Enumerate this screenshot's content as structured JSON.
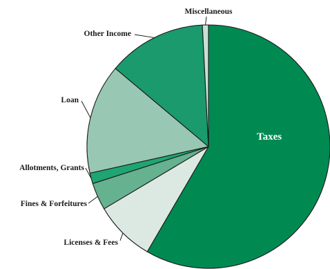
{
  "chart_data": {
    "type": "pie",
    "title": "",
    "slices": [
      {
        "label": "Taxes",
        "value": 58.0,
        "color": "#008a52",
        "label_inside": true
      },
      {
        "label": "Licenses & Fees",
        "value": 8.0,
        "color": "#dce9e2"
      },
      {
        "label": "Fines & Forfeitures",
        "value": 3.6,
        "color": "#66b18f"
      },
      {
        "label": "Allotments, Grants",
        "value": 1.4,
        "color": "#1ea572"
      },
      {
        "label": "Loan",
        "value": 14.5,
        "color": "#98c8b3"
      },
      {
        "label": "Other Income",
        "value": 13.0,
        "color": "#1a9a6d"
      },
      {
        "label": "Miscellaneous",
        "value": 0.8,
        "color": "#c9dfd5"
      }
    ],
    "start_angle_deg": 0,
    "direction": "clockwise",
    "legend": "none (callout labels)"
  }
}
